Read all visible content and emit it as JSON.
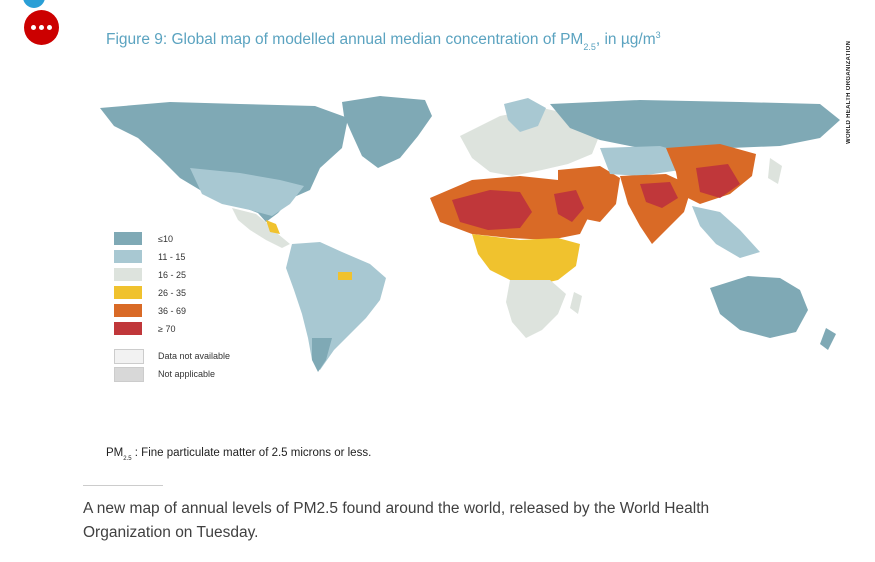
{
  "page": {
    "top_cut_text": "",
    "caption": "A new map of annual levels of PM2.5 found around the world, released by the World Health Organization on Tuesday."
  },
  "figure": {
    "title_main": "Figure 9: Global map of modelled annual median concentration of PM",
    "title_sub": "2.5",
    "title_after": ", in µg/m",
    "title_sup": "3",
    "side_credit": "WORLD HEALTH ORGANIZATION",
    "footnote_pm": "PM",
    "footnote_sub": "2.5",
    "footnote_text": ": Fine particulate matter of 2.5 microns or less."
  },
  "legend": {
    "items": [
      {
        "label": "≤10",
        "color": "#7fa9b5"
      },
      {
        "label": "11 - 15",
        "color": "#a8c8d2"
      },
      {
        "label": "16 - 25",
        "color": "#dde3dd"
      },
      {
        "label": "26 - 35",
        "color": "#f0c22e"
      },
      {
        "label": "36 - 69",
        "color": "#d96a26"
      },
      {
        "label": "≥ 70",
        "color": "#c0373a"
      },
      {
        "label": "Data not available",
        "color": "#f2f2f2"
      },
      {
        "label": "Not applicable",
        "color": "#d8d8d8"
      }
    ]
  },
  "colors": {
    "ocean": "#ffffff",
    "low": "#7fa9b5",
    "lowmid": "#a8c8d2",
    "mid": "#dde3dd",
    "yellow": "#f0c22e",
    "orange": "#d96a26",
    "red": "#c0373a",
    "accent": "#cc0000",
    "title": "#5ba3c0"
  }
}
